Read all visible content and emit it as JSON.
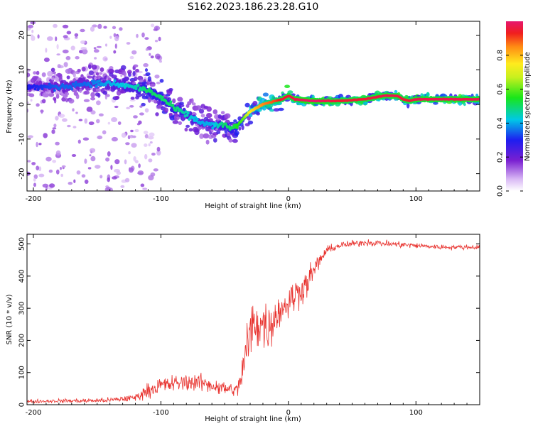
{
  "figure_title": "S162.2023.186.23.28.G10",
  "chart_data": [
    {
      "type": "heatmap",
      "xlabel": "Height of straight line (km)",
      "ylabel": "Frequency (Hz)",
      "xlim": [
        -205,
        150
      ],
      "ylim": [
        -25,
        24
      ],
      "x_ticks": [
        -200,
        -100,
        0,
        100
      ],
      "x_tick_labels": [
        "-200",
        "-100",
        "0",
        "100"
      ],
      "y_ticks": [
        20,
        10,
        0,
        -10,
        -20
      ],
      "y_tick_labels": [
        "20",
        "10",
        "0",
        "-10",
        "-20"
      ],
      "grid": false,
      "colorbar": {
        "label": "Normalized spectral amplitude",
        "range": [
          0,
          1
        ],
        "ticks": [
          0.0,
          0.2,
          0.4,
          0.6,
          0.8
        ],
        "tick_labels": [
          "0.0",
          "0.2",
          "0.4",
          "0.6",
          "0.8"
        ],
        "colormap": "rainbow"
      },
      "ridge": {
        "x": [
          -200,
          -180,
          -160,
          -140,
          -120,
          -110,
          -100,
          -90,
          -80,
          -70,
          -60,
          -50,
          -45,
          -40,
          -35,
          -30,
          -20,
          -10,
          -5,
          0,
          5,
          20,
          40,
          60,
          75,
          85,
          90,
          95,
          100,
          120,
          150
        ],
        "frequency": [
          5,
          5,
          6,
          6,
          5,
          4,
          2,
          -1,
          -3,
          -5,
          -6,
          -6,
          -7,
          -6,
          -4,
          -2,
          0,
          1,
          1.5,
          2.5,
          1.5,
          1,
          1,
          1.5,
          2.5,
          2.5,
          1.5,
          1,
          1.5,
          1.5,
          1.5
        ],
        "amplitude": [
          0.3,
          0.35,
          0.35,
          0.4,
          0.45,
          0.5,
          0.5,
          0.5,
          0.45,
          0.4,
          0.4,
          0.5,
          0.5,
          0.55,
          0.6,
          0.75,
          0.85,
          0.9,
          0.95,
          0.95,
          0.97,
          1,
          0.95,
          0.95,
          0.97,
          0.97,
          0.95,
          0.95,
          0.97,
          0.97,
          0.97
        ]
      }
    },
    {
      "type": "line",
      "xlabel": "Height of straight line (km)",
      "ylabel": "SNR (10 * v/v)",
      "xlim": [
        -205,
        150
      ],
      "ylim": [
        0,
        530
      ],
      "x_ticks": [
        -200,
        -100,
        0,
        100
      ],
      "x_tick_labels": [
        "-200",
        "-100",
        "0",
        "100"
      ],
      "y_ticks": [
        0,
        100,
        200,
        300,
        400,
        500
      ],
      "y_tick_labels": [
        "0",
        "100",
        "200",
        "300",
        "400",
        "500"
      ],
      "grid": false,
      "series": [
        {
          "color": "#e8322e",
          "x": [
            -205,
            -180,
            -160,
            -140,
            -120,
            -110,
            -100,
            -90,
            -80,
            -70,
            -60,
            -50,
            -40,
            -35,
            -30,
            -25,
            -20,
            -15,
            -10,
            -5,
            0,
            5,
            10,
            15,
            20,
            25,
            30,
            40,
            50,
            60,
            80,
            100,
            120,
            150
          ],
          "y": [
            10,
            12,
            12,
            14,
            22,
            45,
            60,
            65,
            70,
            70,
            60,
            50,
            45,
            120,
            230,
            260,
            250,
            240,
            280,
            300,
            320,
            340,
            360,
            380,
            420,
            450,
            480,
            495,
            500,
            505,
            500,
            495,
            490,
            490
          ],
          "noise": [
            6,
            7,
            8,
            9,
            14,
            25,
            30,
            30,
            30,
            30,
            28,
            25,
            25,
            80,
            100,
            100,
            90,
            80,
            70,
            60,
            60,
            60,
            55,
            50,
            35,
            25,
            15,
            12,
            12,
            12,
            12,
            10,
            9,
            8
          ]
        }
      ]
    }
  ]
}
